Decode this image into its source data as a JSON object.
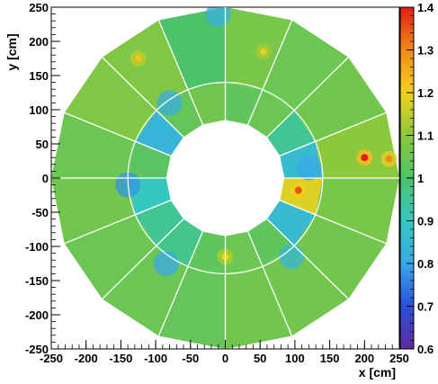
{
  "chart_data": {
    "type": "heatmap",
    "title": "",
    "xlabel": "x [cm]",
    "ylabel": "y [cm]",
    "xlim": [
      -250,
      250
    ],
    "ylim": [
      -250,
      250
    ],
    "x_ticks": [
      -250,
      -200,
      -150,
      -100,
      -50,
      0,
      50,
      100,
      150,
      200,
      250
    ],
    "y_ticks": [
      -250,
      -200,
      -150,
      -100,
      -50,
      0,
      50,
      100,
      150,
      200,
      250
    ],
    "colorbar": {
      "range": [
        0.6,
        1.4
      ],
      "ticks": [
        "0.6",
        "0.7",
        "0.8",
        "0.9",
        "1",
        "1.1",
        "1.2",
        "1.3",
        "1.4"
      ],
      "colors": [
        "#5a2d9c",
        "#2b4fd6",
        "#3aa8e8",
        "#36c7c0",
        "#4cc36a",
        "#8cc83c",
        "#f0d21e",
        "#f08a1a",
        "#e01e12"
      ]
    },
    "geometry": {
      "inner_ring": {
        "r_min": 85,
        "r_max": 140,
        "sectors": 16
      },
      "outer_ring": {
        "r_min": 140,
        "r_max": 250,
        "sectors": 16
      }
    },
    "typical_value": 1.06,
    "inner_ring_values": [
      0.86,
      0.95,
      1.05,
      1.03,
      1.06,
      1.04,
      0.84,
      1.02,
      0.9,
      0.95,
      0.96,
      1.03,
      1.05,
      1.03,
      0.86,
      1.18
    ],
    "outer_ring_values": [
      1.1,
      1.06,
      1.05,
      1.07,
      1.0,
      1.08,
      1.08,
      1.05,
      1.06,
      1.05,
      1.05,
      1.04,
      1.06,
      1.06,
      1.06,
      1.07
    ],
    "hot_spots": [
      {
        "x": 200,
        "y": 30,
        "value": 1.4
      },
      {
        "x": 235,
        "y": 28,
        "value": 1.3
      },
      {
        "x": 105,
        "y": -18,
        "value": 1.35
      },
      {
        "x": -125,
        "y": 175,
        "value": 1.22
      },
      {
        "x": 55,
        "y": 185,
        "value": 1.18
      },
      {
        "x": 0,
        "y": -115,
        "value": 1.2
      }
    ],
    "low_bands": [
      {
        "x": -140,
        "y": -10,
        "value": 0.78
      },
      {
        "x": 120,
        "y": 15,
        "value": 0.8
      },
      {
        "x": -85,
        "y": -125,
        "value": 0.8
      },
      {
        "x": -80,
        "y": 110,
        "value": 0.82
      },
      {
        "x": 95,
        "y": -115,
        "value": 0.84
      },
      {
        "x": -10,
        "y": 240,
        "value": 0.82
      }
    ]
  }
}
